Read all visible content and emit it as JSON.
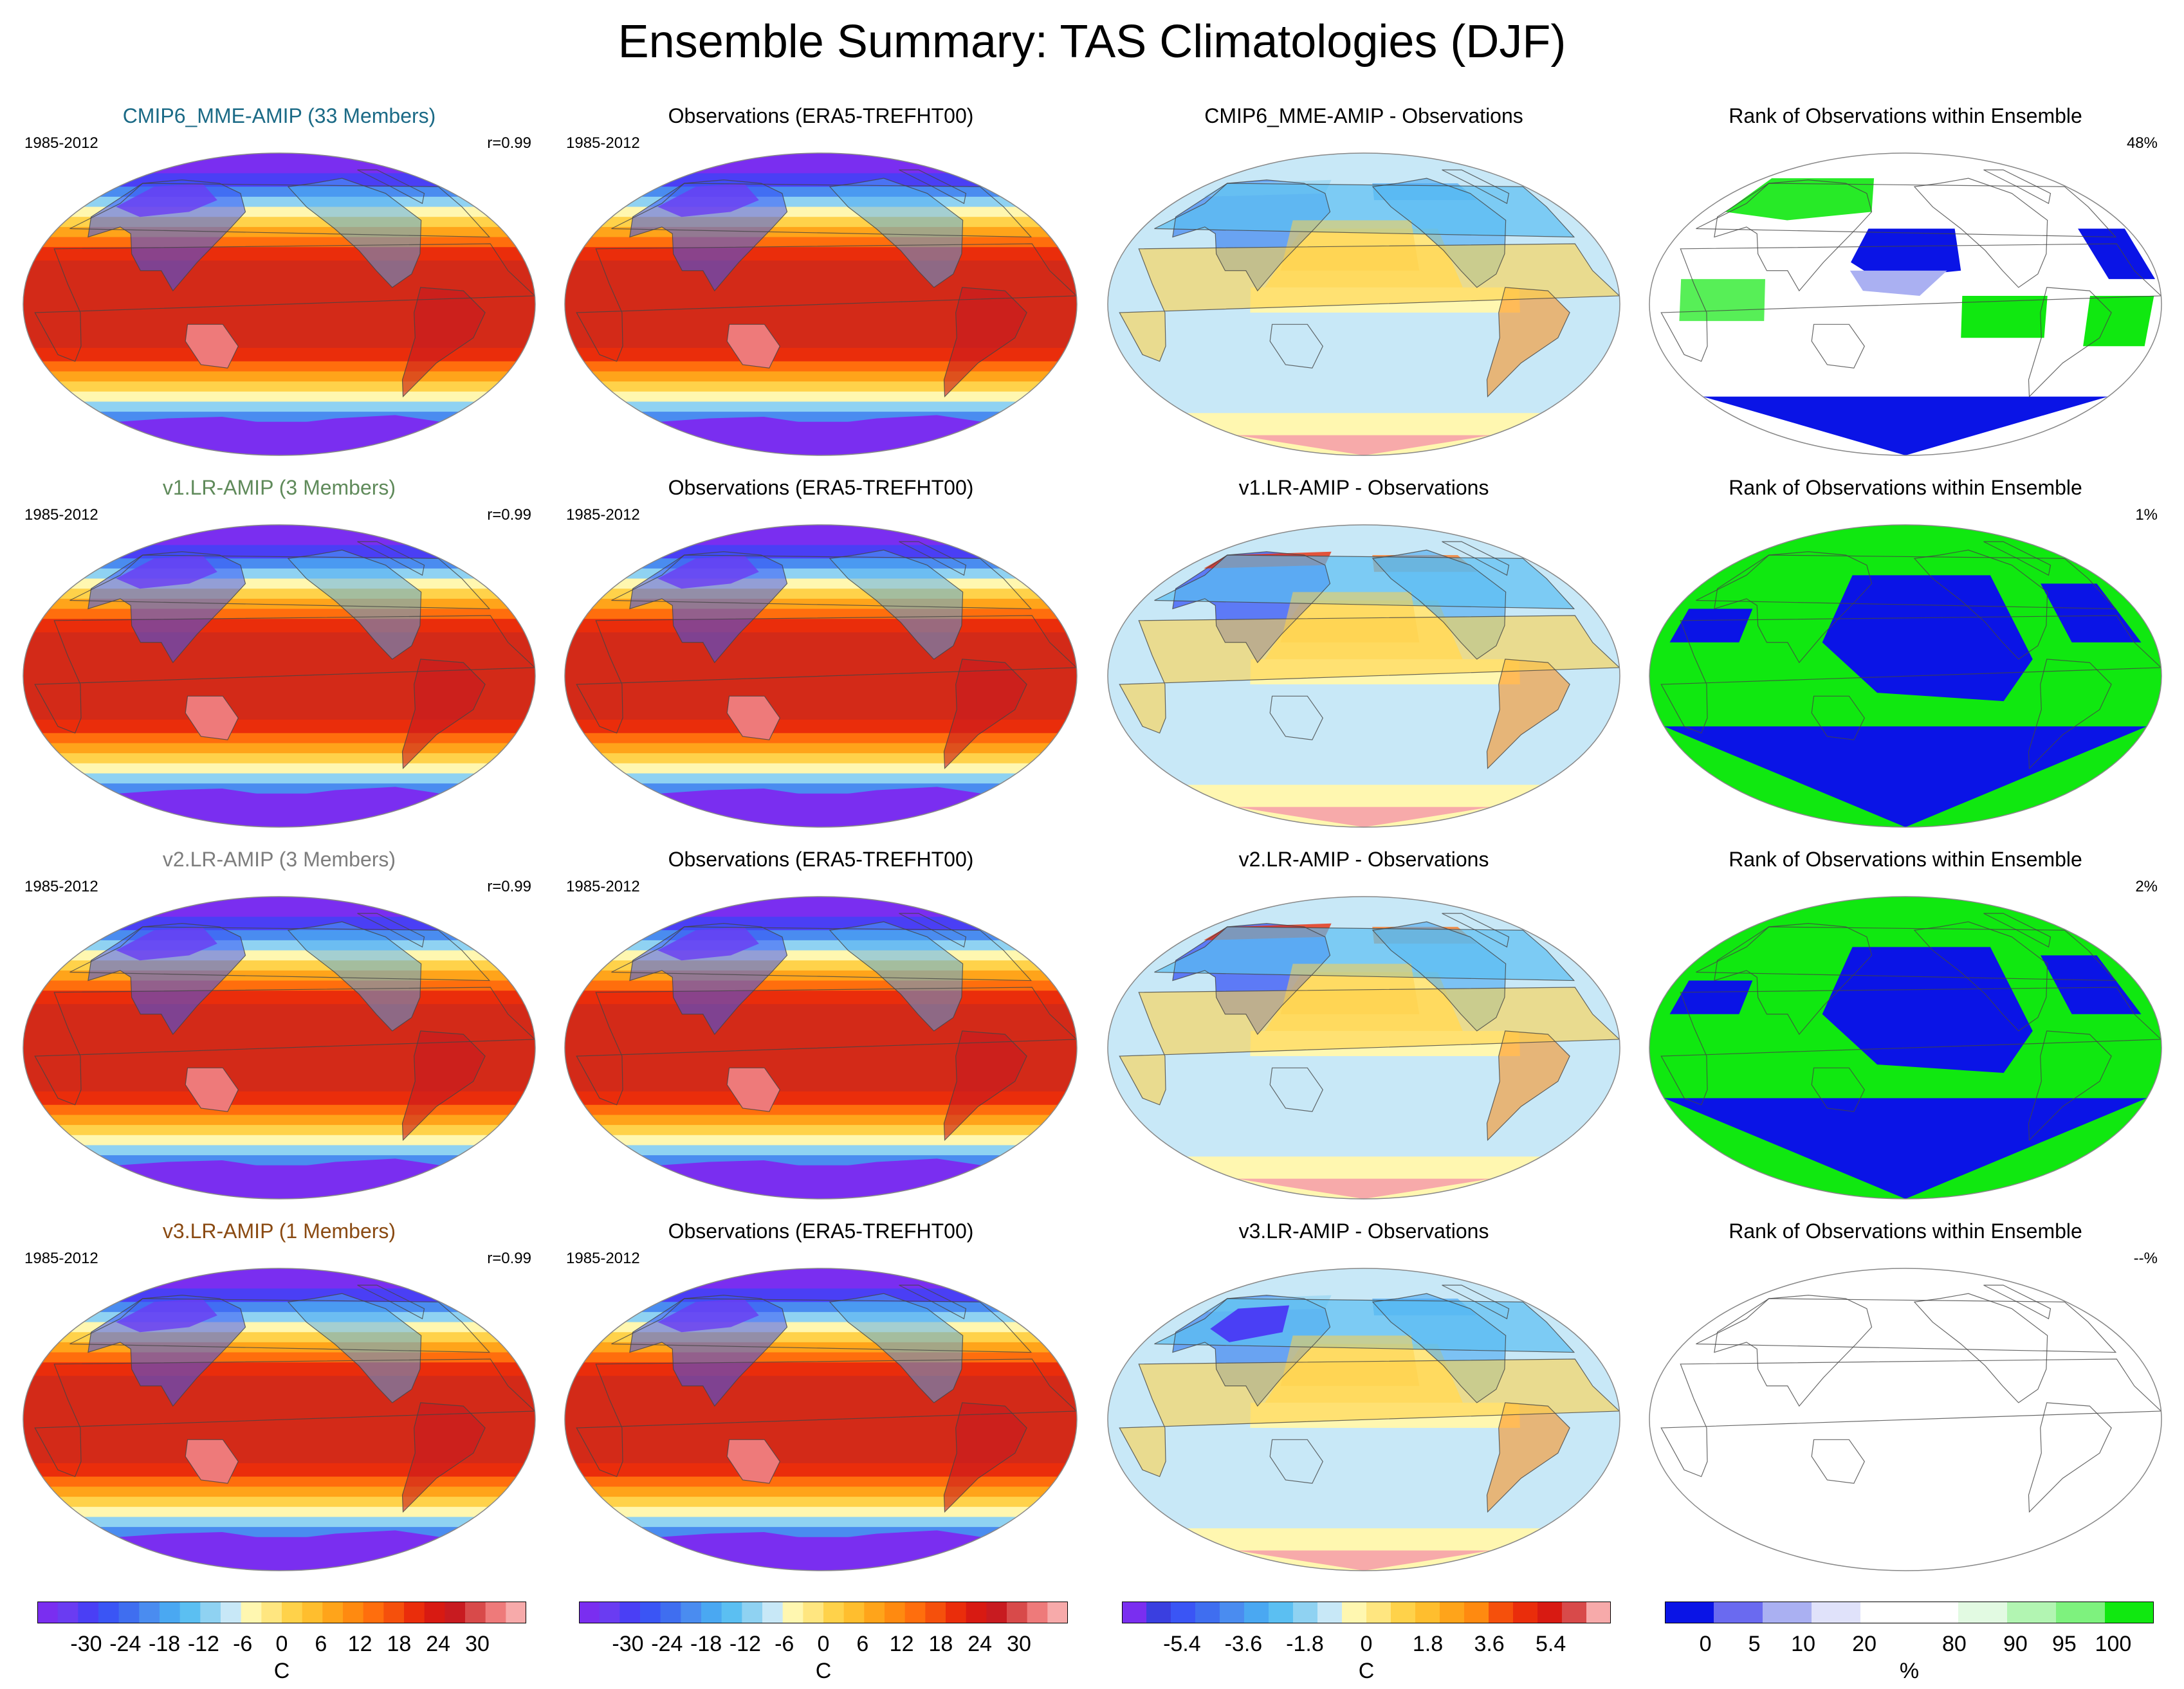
{
  "title": "Ensemble Summary: TAS Climatologies (DJF)",
  "colors": {
    "title_mme": "#1b6a86",
    "title_v1": "#5f8a5a",
    "title_v2": "#7d7d7d",
    "title_v3": "#8a4a12"
  },
  "rows": [
    {
      "model": {
        "title": "CMIP6_MME-AMIP (33 Members)",
        "period": "1985-2012",
        "corr": "r=0.99",
        "title_color": "#1b6a86"
      },
      "obs": {
        "title": "Observations (ERA5-TREFHT00)",
        "period": "1985-2012"
      },
      "diff": {
        "title": "CMIP6_MME-AMIP - Observations"
      },
      "rank": {
        "title": "Rank of Observations within Ensemble",
        "value": "48%",
        "pattern": "mixed"
      }
    },
    {
      "model": {
        "title": "v1.LR-AMIP (3 Members)",
        "period": "1985-2012",
        "corr": "r=0.99",
        "title_color": "#5f8a5a"
      },
      "obs": {
        "title": "Observations (ERA5-TREFHT00)",
        "period": "1985-2012"
      },
      "diff": {
        "title": "v1.LR-AMIP - Observations"
      },
      "rank": {
        "title": "Rank of Observations within Ensemble",
        "value": "1%",
        "pattern": "binary"
      }
    },
    {
      "model": {
        "title": "v2.LR-AMIP (3 Members)",
        "period": "1985-2012",
        "corr": "r=0.99",
        "title_color": "#7d7d7d"
      },
      "obs": {
        "title": "Observations (ERA5-TREFHT00)",
        "period": "1985-2012"
      },
      "diff": {
        "title": "v2.LR-AMIP - Observations"
      },
      "rank": {
        "title": "Rank of Observations within Ensemble",
        "value": "2%",
        "pattern": "binary"
      }
    },
    {
      "model": {
        "title": "v3.LR-AMIP (1 Members)",
        "period": "1985-2012",
        "corr": "r=0.99",
        "title_color": "#8a4a12"
      },
      "obs": {
        "title": "Observations (ERA5-TREFHT00)",
        "period": "1985-2012"
      },
      "diff": {
        "title": "v3.LR-AMIP - Observations"
      },
      "rank": {
        "title": "Rank of Observations within Ensemble",
        "value": "--%",
        "pattern": "empty"
      }
    }
  ],
  "colorbars": [
    {
      "unit": "C",
      "ticks": [
        "-30",
        "-24",
        "-18",
        "-12",
        "-6",
        "0",
        "6",
        "12",
        "18",
        "24",
        "30"
      ],
      "colors": [
        "#7a2ef0",
        "#6a3cf2",
        "#4a3ff5",
        "#3a55f5",
        "#3f6ef0",
        "#4a8cf0",
        "#4aa8f2",
        "#5bbff2",
        "#8fd2f2",
        "#c8e8f7",
        "#fff7b0",
        "#ffe680",
        "#ffd24a",
        "#ffbe2e",
        "#ffa41a",
        "#ff8a10",
        "#ff6e0d",
        "#f5500c",
        "#ea2d0b",
        "#d81a12",
        "#c81b20",
        "#d84a4a",
        "#ee7a7a",
        "#f7aaaa"
      ]
    },
    {
      "unit": "C",
      "ticks": [
        "-30",
        "-24",
        "-18",
        "-12",
        "-6",
        "0",
        "6",
        "12",
        "18",
        "24",
        "30"
      ],
      "colors": [
        "#7a2ef0",
        "#6a3cf2",
        "#4a3ff5",
        "#3a55f5",
        "#3f6ef0",
        "#4a8cf0",
        "#4aa8f2",
        "#5bbff2",
        "#8fd2f2",
        "#c8e8f7",
        "#fff7b0",
        "#ffe680",
        "#ffd24a",
        "#ffbe2e",
        "#ffa41a",
        "#ff8a10",
        "#ff6e0d",
        "#f5500c",
        "#ea2d0b",
        "#d81a12",
        "#c81b20",
        "#d84a4a",
        "#ee7a7a",
        "#f7aaaa"
      ]
    },
    {
      "unit": "C",
      "ticks": [
        "-5.4",
        "-3.6",
        "-1.8",
        "0",
        "1.8",
        "3.6",
        "5.4"
      ],
      "colors": [
        "#7a2ef0",
        "#3a3fe0",
        "#3a55f5",
        "#3f6ef0",
        "#4a8cf0",
        "#4aa8f2",
        "#5bbff2",
        "#8fd2f2",
        "#c8e8f7",
        "#fff7b0",
        "#ffe680",
        "#ffd24a",
        "#ffbe2e",
        "#ffa41a",
        "#ff8a10",
        "#f5500c",
        "#ea2d0b",
        "#d81a12",
        "#d84a4a",
        "#f7aaaa"
      ]
    },
    {
      "unit": "%",
      "ticks": [
        "0",
        "5",
        "10",
        "20",
        "80",
        "90",
        "95",
        "100"
      ],
      "colors": [
        "#0a14e6",
        "#6a6af0",
        "#aab0f2",
        "#e0e2fa",
        "#ffffff",
        "#ffffff",
        "#e2fae2",
        "#b2f5b2",
        "#7ef27e",
        "#10e810"
      ]
    }
  ]
}
